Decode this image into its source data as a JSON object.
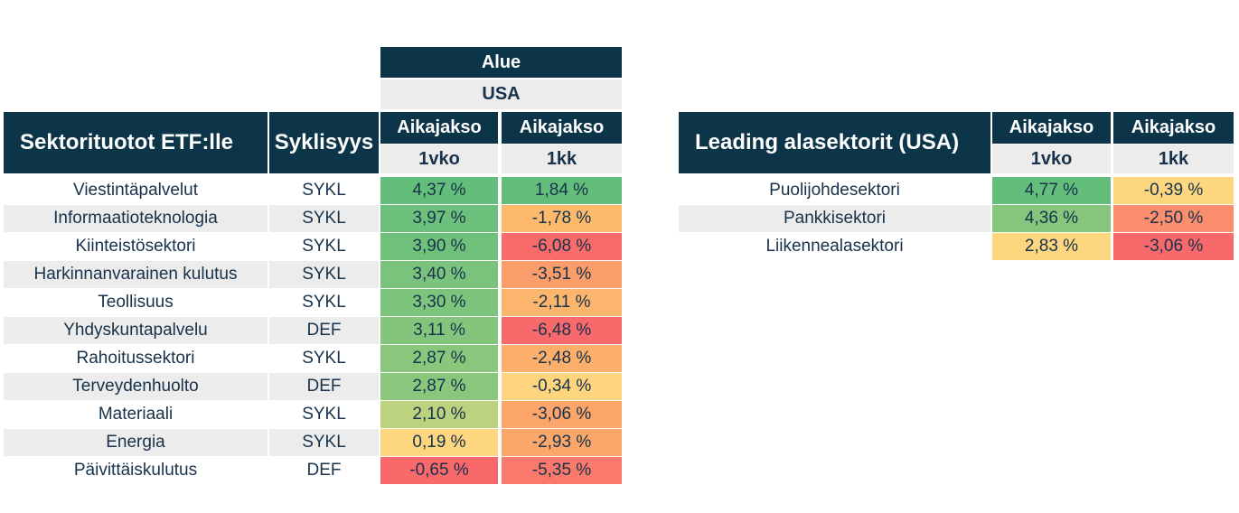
{
  "main_table": {
    "region_header": "Alue",
    "region_value": "USA",
    "title": "Sektorituotot ETF:lle",
    "cyclicality_header": "Syklisyys",
    "period_header": "Aikajakso",
    "period_1w": "1vko",
    "period_1m": "1kk",
    "rows": [
      {
        "sector": "Viestintäpalvelut",
        "type": "SYKL",
        "w": "4,37 %",
        "m": "1,84 %",
        "w_color": "#63be7b",
        "m_color": "#63be7b"
      },
      {
        "sector": "Informaatioteknologia",
        "type": "SYKL",
        "w": "3,97 %",
        "m": "-1,78 %",
        "w_color": "#6cc07b",
        "m_color": "#fdba6c"
      },
      {
        "sector": "Kiinteistösektori",
        "type": "SYKL",
        "w": "3,90 %",
        "m": "-6,08 %",
        "w_color": "#6ec07b",
        "m_color": "#f86b6b"
      },
      {
        "sector": "Harkinnanvarainen kulutus",
        "type": "SYKL",
        "w": "3,40 %",
        "m": "-3,51 %",
        "w_color": "#7ac37c",
        "m_color": "#fb9d6a"
      },
      {
        "sector": "Teollisuus",
        "type": "SYKL",
        "w": "3,30 %",
        "m": "-2,11 %",
        "w_color": "#7dc47c",
        "m_color": "#fcb56c"
      },
      {
        "sector": "Yhdyskuntapalvelu",
        "type": "DEF",
        "w": "3,11 %",
        "m": "-6,48 %",
        "w_color": "#83c57c",
        "m_color": "#f8696b"
      },
      {
        "sector": "Rahoitussektori",
        "type": "SYKL",
        "w": "2,87 %",
        "m": "-2,48 %",
        "w_color": "#8ac77d",
        "m_color": "#fcae6b"
      },
      {
        "sector": "Terveydenhuolto",
        "type": "DEF",
        "w": "2,87 %",
        "m": "-0,34 %",
        "w_color": "#8ac77d",
        "m_color": "#fed47f"
      },
      {
        "sector": "Materiaali",
        "type": "SYKL",
        "w": "2,10 %",
        "m": "-3,06 %",
        "w_color": "#bdd27e",
        "m_color": "#fba56b"
      },
      {
        "sector": "Energia",
        "type": "SYKL",
        "w": "0,19 %",
        "m": "-2,93 %",
        "w_color": "#fed67f",
        "m_color": "#fba76b"
      },
      {
        "sector": "Päivittäiskulutus",
        "type": "DEF",
        "w": "-0,65 %",
        "m": "-5,35 %",
        "w_color": "#f8696b",
        "m_color": "#f97a6c"
      }
    ]
  },
  "side_table": {
    "title": "Leading alasektorit (USA)",
    "period_header": "Aikajakso",
    "period_1w": "1vko",
    "period_1m": "1kk",
    "rows": [
      {
        "sector": "Puolijohdesektori",
        "w": "4,77 %",
        "m": "-0,39 %",
        "w_color": "#63be7b",
        "m_color": "#fed67f"
      },
      {
        "sector": "Pankkisektori",
        "w": "4,36 %",
        "m": "-2,50 %",
        "w_color": "#86c67c",
        "m_color": "#fa8e6e"
      },
      {
        "sector": "Liikennealasektori",
        "w": "2,83 %",
        "m": "-3,06 %",
        "w_color": "#fed67f",
        "m_color": "#f8696b"
      }
    ]
  },
  "chart_data": {
    "type": "table",
    "region": "USA",
    "columns": [
      "Sektorituotot ETF:lle",
      "Syklisyys",
      "1vko",
      "1kk"
    ],
    "rows": [
      [
        "Viestintäpalvelut",
        "SYKL",
        4.37,
        1.84
      ],
      [
        "Informaatioteknologia",
        "SYKL",
        3.97,
        -1.78
      ],
      [
        "Kiinteistösektori",
        "SYKL",
        3.9,
        -6.08
      ],
      [
        "Harkinnanvarainen kulutus",
        "SYKL",
        3.4,
        -3.51
      ],
      [
        "Teollisuus",
        "SYKL",
        3.3,
        -2.11
      ],
      [
        "Yhdyskuntapalvelu",
        "DEF",
        3.11,
        -6.48
      ],
      [
        "Rahoitussektori",
        "SYKL",
        2.87,
        -2.48
      ],
      [
        "Terveydenhuolto",
        "DEF",
        2.87,
        -0.34
      ],
      [
        "Materiaali",
        "SYKL",
        2.1,
        -3.06
      ],
      [
        "Energia",
        "SYKL",
        0.19,
        -2.93
      ],
      [
        "Päivittäiskulutus",
        "DEF",
        -0.65,
        -5.35
      ]
    ],
    "subsector_rows": [
      [
        "Puolijohdesektori",
        4.77,
        -0.39
      ],
      [
        "Pankkisektori",
        4.36,
        -2.5
      ],
      [
        "Liikennealasektori",
        2.83,
        -3.06
      ]
    ]
  }
}
